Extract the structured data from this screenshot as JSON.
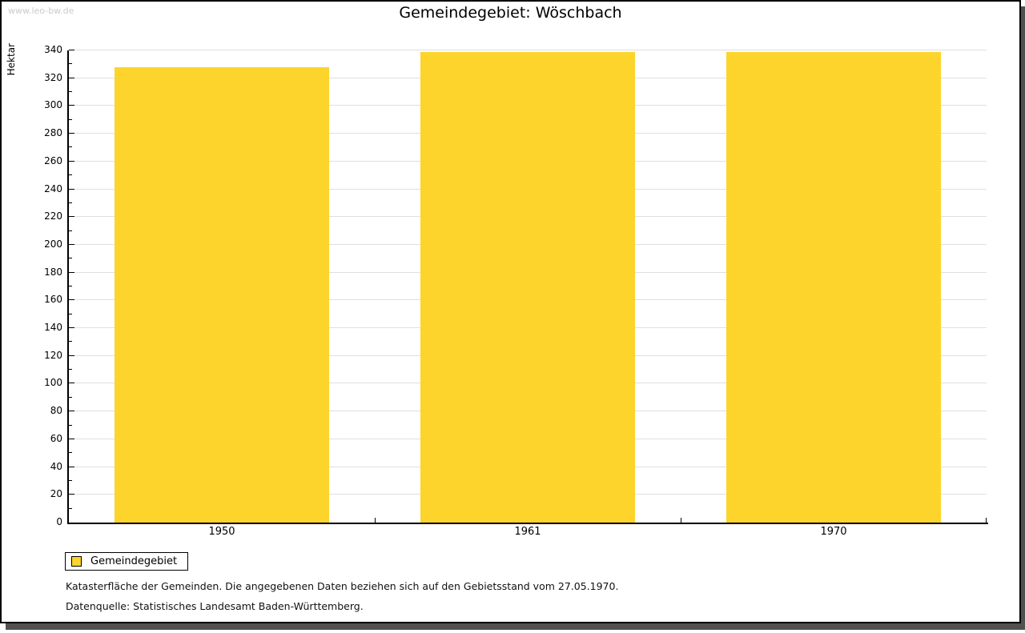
{
  "watermark": "www.leo-bw.de",
  "chart_data": {
    "type": "bar",
    "title": "Gemeindegebiet: Wöschbach",
    "categories": [
      "1950",
      "1961",
      "1970"
    ],
    "values": [
      328,
      339,
      339
    ],
    "xlabel": "",
    "ylabel": "Hektar",
    "ylim": [
      0,
      340
    ],
    "y_major_step": 20,
    "y_minor_step": 10,
    "grid": "horizontal-major-on",
    "bar_color": "#FCD42C",
    "legend": {
      "position": "bottom-left",
      "entries": [
        {
          "label": "Gemeindegebiet",
          "color": "#FCD42C"
        }
      ]
    }
  },
  "footer": {
    "line1": "Katasterfläche der Gemeinden. Die angegebenen Daten beziehen sich auf den Gebietsstand vom 27.05.1970.",
    "line2": "Datenquelle: Statistisches Landesamt Baden-Württemberg."
  },
  "colors": {
    "bar": "#FCD42C",
    "grid": "#DFDFDF",
    "axis": "#000000",
    "watermark": "#CBCBCB",
    "frame_shadow": "#515151"
  }
}
